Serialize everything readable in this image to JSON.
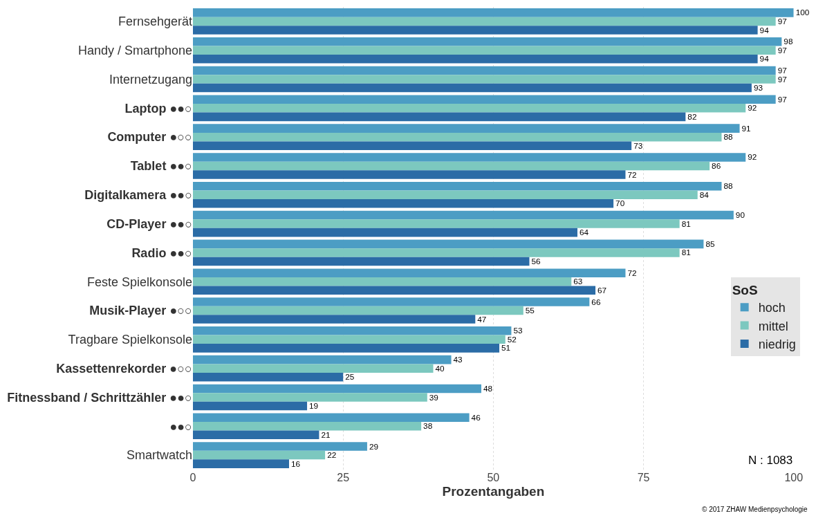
{
  "chart_data": {
    "type": "bar",
    "orientation": "horizontal",
    "xlabel": "Prozentangaben",
    "legend_title": "SoS",
    "categories": [
      "Fernsehgerät",
      "Handy / Smartphone",
      "Internetzugang",
      "Laptop ●●○",
      "Computer ●○○",
      "Tablet ●●○",
      "Digitalkamera ●●○",
      "CD-Player ●●○",
      "Radio ●●○",
      "Feste Spielkonsole",
      "Musik-Player ●○○",
      "Tragbare Spielkonsole",
      "Kassettenrekorder ●○○",
      "Fitnessband / Schrittzähler ●●○",
      "●●○",
      "Smartwatch"
    ],
    "series": [
      {
        "name": "hoch",
        "color": "#4c9dc4",
        "values": [
          100,
          98,
          97,
          97,
          91,
          92,
          88,
          90,
          85,
          72,
          66,
          53,
          43,
          48,
          46,
          29
        ]
      },
      {
        "name": "mittel",
        "color": "#7cc8bf",
        "values": [
          97,
          97,
          97,
          92,
          88,
          86,
          84,
          81,
          81,
          63,
          55,
          52,
          40,
          39,
          38,
          22
        ]
      },
      {
        "name": "niedrig",
        "color": "#2b6ca6",
        "values": [
          94,
          94,
          93,
          82,
          73,
          72,
          70,
          64,
          56,
          67,
          47,
          51,
          25,
          19,
          21,
          16
        ]
      }
    ],
    "xlim": [
      0,
      100
    ],
    "xticks": [
      0,
      25,
      50,
      75,
      100
    ],
    "grid": "x",
    "legend": "right",
    "data_labels": true,
    "annotations": [
      "N : 1083",
      "© 2017 ZHAW Medienpsychologie"
    ]
  }
}
